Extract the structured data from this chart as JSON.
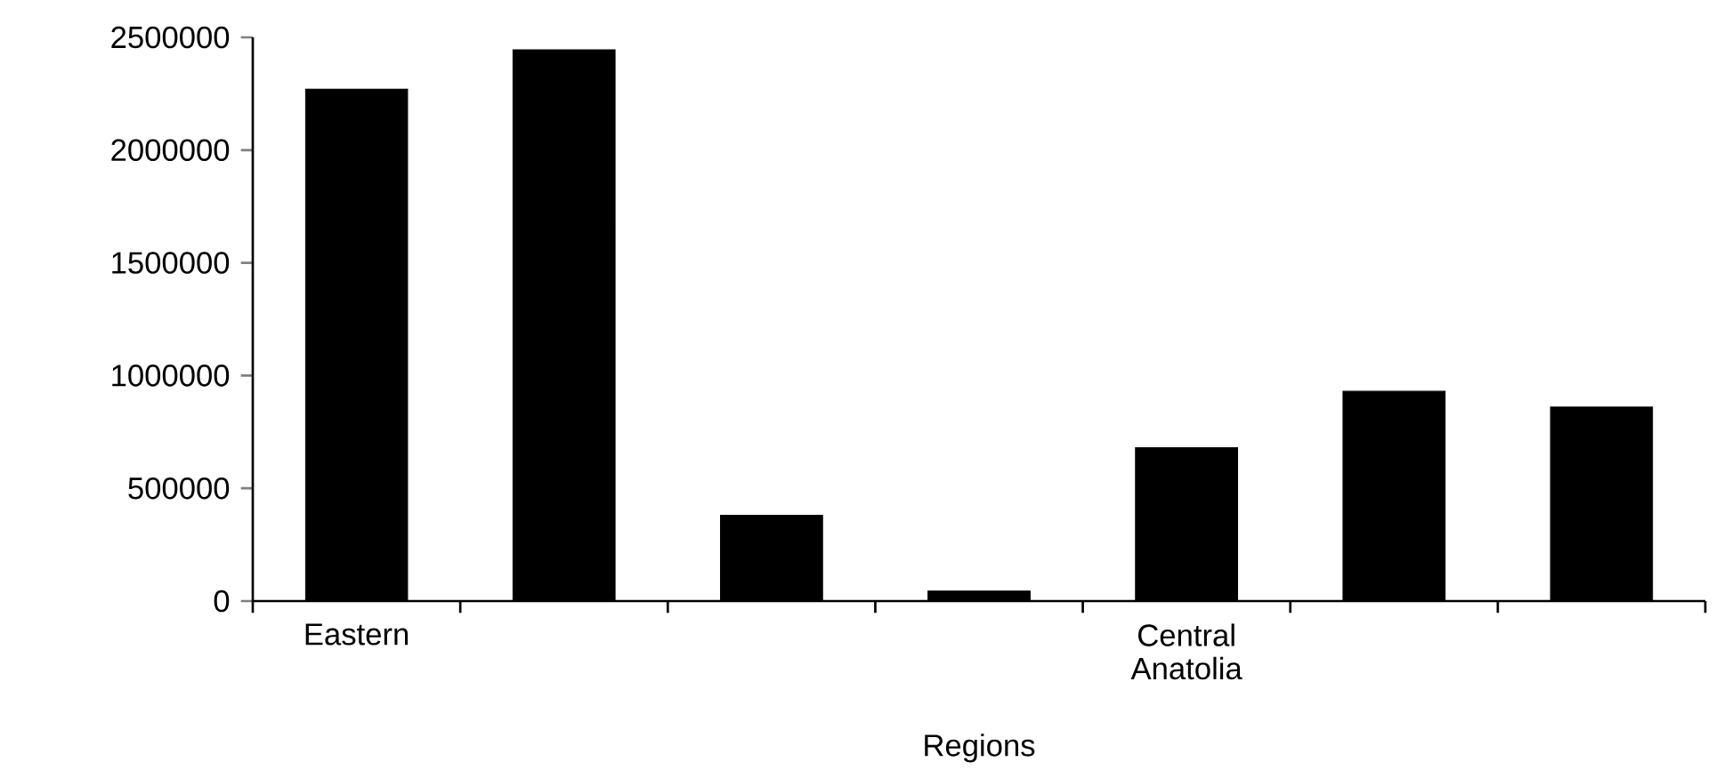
{
  "chart_data": {
    "type": "bar",
    "xlabel": "Regions",
    "categories": [
      "Eastern",
      null,
      null,
      null,
      "Central Anatolia",
      null,
      null
    ],
    "values": [
      2270000,
      2445000,
      380000,
      44000,
      680000,
      930000,
      860000
    ],
    "color": "#000000",
    "ylim": [
      0,
      2500000
    ],
    "yticks": [
      0,
      500000,
      1000000,
      1500000,
      2000000,
      2500000
    ],
    "grid": false
  }
}
